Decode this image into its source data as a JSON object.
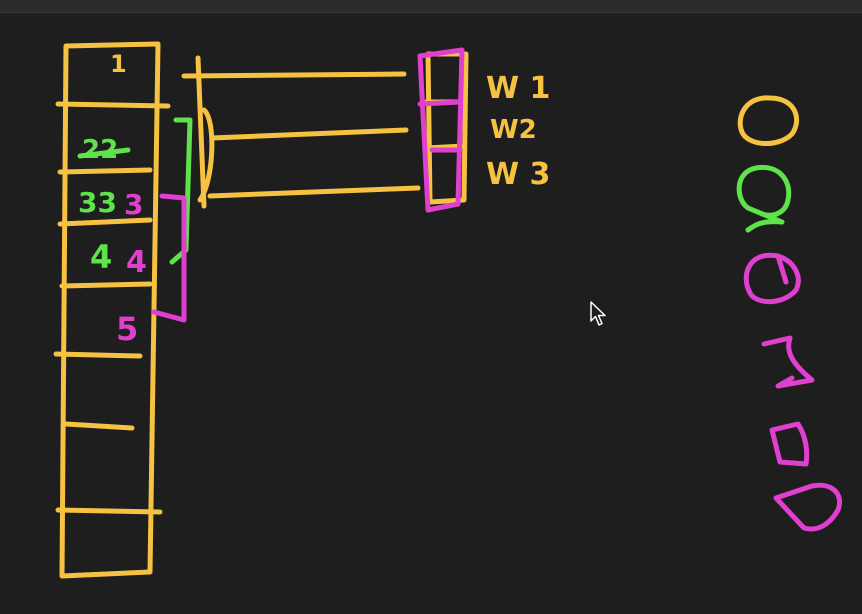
{
  "toolbar": {},
  "stack_labels": {
    "slot1": "1",
    "slot2": "22",
    "slot3_green": "33",
    "slot3_pink": "3",
    "slot4_green": "4",
    "slot4_pink": "4",
    "slot5": "5"
  },
  "window_labels": {
    "w1": "W 1",
    "w2": "W2",
    "w3": "W 3"
  },
  "colors": {
    "background": "#1e1e1f",
    "yellow": "#f5c242",
    "green": "#5fe34a",
    "pink": "#e040d0"
  }
}
